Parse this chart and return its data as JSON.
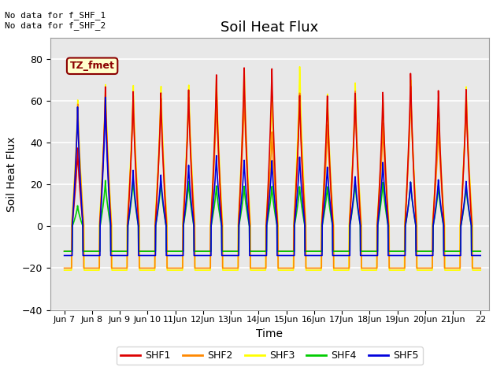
{
  "title": "Soil Heat Flux",
  "xlabel": "Time",
  "ylabel": "Soil Heat Flux",
  "ylim": [
    -40,
    90
  ],
  "yticks": [
    -40,
    -20,
    0,
    20,
    40,
    60,
    80
  ],
  "xlim_days": [
    6.5,
    22.3
  ],
  "xtick_labels": [
    "Jun 7",
    "Jun 8",
    "Jun 9",
    "Jun 10",
    "11Jun",
    "12Jun",
    "13Jun",
    "14Jun",
    "15Jun",
    "16Jun",
    "17Jun",
    "18Jun",
    "19Jun",
    "20Jun",
    "21Jun",
    "22"
  ],
  "xtick_positions": [
    7,
    8,
    9,
    10,
    11,
    12,
    13,
    14,
    15,
    16,
    17,
    18,
    19,
    20,
    21,
    22
  ],
  "series_colors": {
    "SHF1": "#dd0000",
    "SHF2": "#ff8800",
    "SHF3": "#ffff00",
    "SHF4": "#00cc00",
    "SHF5": "#0000dd"
  },
  "legend_colors": [
    "#dd0000",
    "#ff8800",
    "#ffff00",
    "#00cc00",
    "#0000dd"
  ],
  "legend_labels": [
    "SHF1",
    "SHF2",
    "SHF3",
    "SHF4",
    "SHF5"
  ],
  "annotation_text": "No data for f_SHF_1\nNo data for f_SHF_2",
  "box_label": "TZ_fmet",
  "bg_color": "#e8e8e8",
  "fig_bg": "#ffffff",
  "grid_color": "#ffffff",
  "title_fontsize": 13,
  "axis_label_fontsize": 10
}
